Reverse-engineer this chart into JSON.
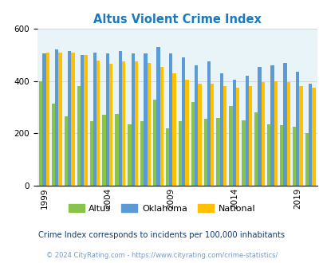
{
  "title": "Altus Violent Crime Index",
  "years": [
    1999,
    2000,
    2001,
    2002,
    2003,
    2004,
    2005,
    2006,
    2007,
    2008,
    2009,
    2010,
    2011,
    2012,
    2013,
    2014,
    2015,
    2016,
    2017,
    2018,
    2019,
    2020
  ],
  "altus": [
    400,
    315,
    265,
    380,
    245,
    270,
    275,
    235,
    245,
    330,
    220,
    245,
    320,
    255,
    260,
    305,
    250,
    280,
    235,
    230,
    225,
    200
  ],
  "oklahoma": [
    505,
    520,
    515,
    500,
    510,
    505,
    515,
    505,
    505,
    530,
    505,
    490,
    460,
    475,
    430,
    405,
    420,
    455,
    460,
    470,
    435,
    390
  ],
  "national": [
    510,
    510,
    510,
    500,
    478,
    465,
    475,
    475,
    470,
    455,
    430,
    405,
    390,
    390,
    380,
    375,
    380,
    395,
    400,
    395,
    380,
    375
  ],
  "altus_color": "#8ac34a",
  "oklahoma_color": "#5b9bd5",
  "national_color": "#ffc000",
  "bg_color": "#e8f4f8",
  "ylim": [
    0,
    600
  ],
  "yticks": [
    0,
    200,
    400,
    600
  ],
  "xtick_years": [
    1999,
    2004,
    2009,
    2014,
    2019
  ],
  "legend_labels": [
    "Altus",
    "Oklahoma",
    "National"
  ],
  "subtitle": "Crime Index corresponds to incidents per 100,000 inhabitants",
  "footer": "© 2024 CityRating.com - https://www.cityrating.com/crime-statistics/",
  "title_color": "#1a7abf",
  "subtitle_color": "#1a3a6b",
  "footer_color": "#7a9abf",
  "grid_color": "#cccccc"
}
